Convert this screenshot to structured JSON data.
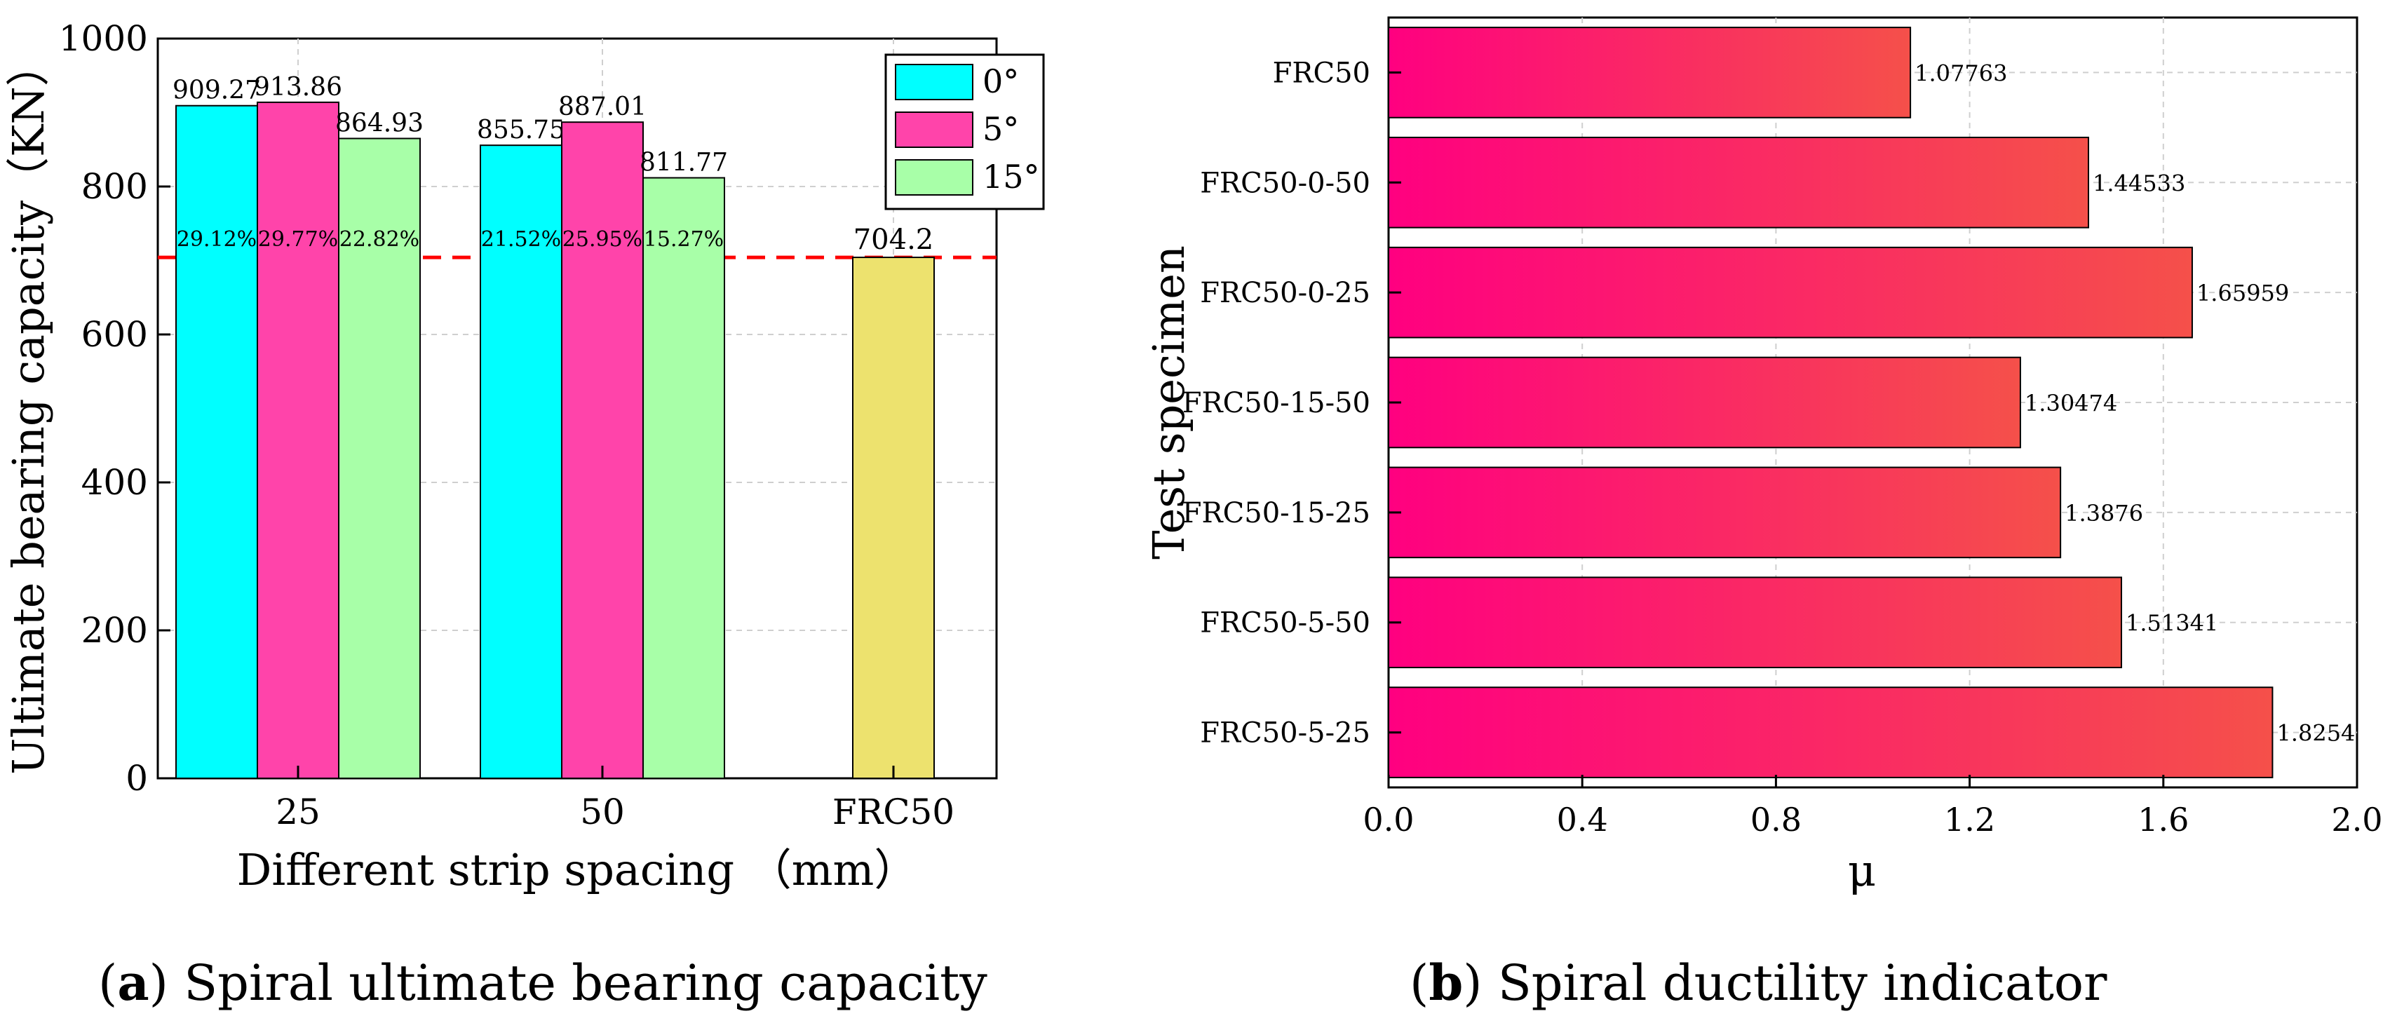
{
  "chart_data": [
    {
      "type": "bar",
      "panel": "a",
      "categories": [
        "25",
        "50",
        "FRC50"
      ],
      "series": [
        {
          "name": "0°",
          "color": "#00FFFF",
          "values": [
            909.27,
            855.75,
            null
          ],
          "value_labels": [
            "909.27",
            "855.75",
            null
          ],
          "pct_labels": [
            "29.12%",
            "21.52%",
            null
          ]
        },
        {
          "name": "5°",
          "color": "#FF44AA",
          "values": [
            913.86,
            887.01,
            null
          ],
          "value_labels": [
            "913.86",
            "887.01",
            null
          ],
          "pct_labels": [
            "29.77%",
            "25.95%",
            null
          ]
        },
        {
          "name": "15°",
          "color": "#A8FFA8",
          "values": [
            864.93,
            811.77,
            null
          ],
          "value_labels": [
            "864.93",
            "811.77",
            null
          ],
          "pct_labels": [
            "22.82%",
            "15.27%",
            null
          ]
        }
      ],
      "control": {
        "name": "FRC50",
        "category": "FRC50",
        "value": 704.2,
        "label": "704.2",
        "color": "#EDE26E"
      },
      "reference_line": {
        "value": 704.2,
        "color": "#FF0000",
        "style": "dashed"
      },
      "xlabel": "Different strip spacing （mm）",
      "ylabel": "Ultimate bearing capacity（KN）",
      "ylim": [
        0,
        1000
      ],
      "yticks": [
        0,
        200,
        400,
        600,
        800,
        1000
      ],
      "grid": true,
      "legend_position": "top-right"
    },
    {
      "type": "bar",
      "panel": "b",
      "orientation": "horizontal",
      "categories": [
        "FRC50",
        "FRC50-0-50",
        "FRC50-0-25",
        "FRC50-15-50",
        "FRC50-15-25",
        "FRC50-5-50",
        "FRC50-5-25"
      ],
      "values": [
        1.07763,
        1.44533,
        1.65959,
        1.30474,
        1.3876,
        1.51341,
        1.8254
      ],
      "value_labels": [
        "1.07763",
        "1.44533",
        "1.65959",
        "1.30474",
        "1.3876",
        "1.51341",
        "1.8254"
      ],
      "gradient_colors": [
        "#FF0080",
        "#F5504A"
      ],
      "xlabel": "μ",
      "ylabel": "Test specimen",
      "xlim": [
        0,
        2.0
      ],
      "xticks": [
        "0.0",
        "0.4",
        "0.8",
        "1.2",
        "1.6",
        "2.0"
      ],
      "grid": true
    }
  ],
  "captions": {
    "a": {
      "letter": "a",
      "text": ") Spiral ultimate bearing capacity"
    },
    "b": {
      "letter": "b",
      "text": ") Spiral ductility indicator"
    }
  }
}
